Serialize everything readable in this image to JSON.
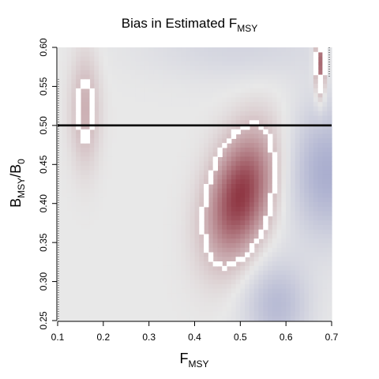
{
  "chart_data": {
    "type": "heatmap",
    "title": {
      "main": "Bias in Estimated F",
      "sub": "MSY"
    },
    "xlabel": {
      "main": "F",
      "sub": "MSY"
    },
    "ylabel": {
      "b1": "B",
      "b1_sub": "MSY",
      "slash": "/",
      "b2": "B",
      "b2_sub": "0"
    },
    "xlim": [
      0.1,
      0.7
    ],
    "ylim": [
      0.25,
      0.6
    ],
    "x_ticks": [
      0.1,
      0.2,
      0.3,
      0.4,
      0.5,
      0.6,
      0.7
    ],
    "x_tick_labels": [
      "0.1",
      "0.2",
      "0.3",
      "0.4",
      "0.5",
      "0.6",
      "0.7"
    ],
    "y_ticks": [
      0.25,
      0.3,
      0.35,
      0.4,
      0.45,
      0.5,
      0.55,
      0.6
    ],
    "y_tick_labels": [
      "0.25",
      "0.30",
      "0.35",
      "0.40",
      "0.45",
      "0.50",
      "0.55",
      "0.60"
    ],
    "reference_line": {
      "y": 0.5,
      "color": "#000000"
    },
    "colors": {
      "positive_bias": "#8b2e3b",
      "negative_bias": "#7f86bd",
      "neutral": "#e8e8e8",
      "contour": "#ffffff"
    },
    "features": [
      {
        "kind": "positive",
        "x": 0.16,
        "y": 0.52,
        "sx": 0.022,
        "sy": 0.05,
        "amp": 0.32,
        "rho": 0.0
      },
      {
        "kind": "positive",
        "x": 0.5,
        "y": 0.41,
        "sx": 0.05,
        "sy": 0.055,
        "amp": 1.0,
        "rho": 0.35
      },
      {
        "kind": "positive",
        "x": 0.675,
        "y": 0.58,
        "sx": 0.008,
        "sy": 0.03,
        "amp": 0.8,
        "rho": 0.0
      },
      {
        "kind": "negative",
        "x": 0.69,
        "y": 0.44,
        "sx": 0.06,
        "sy": 0.06,
        "amp": 0.45,
        "rho": 0.0
      },
      {
        "kind": "negative",
        "x": 0.58,
        "y": 0.27,
        "sx": 0.05,
        "sy": 0.04,
        "amp": 0.35,
        "rho": 0.0
      },
      {
        "kind": "negative",
        "x": 0.5,
        "y": 0.6,
        "sx": 0.15,
        "sy": 0.03,
        "amp": 0.15,
        "rho": 0.0
      }
    ]
  }
}
